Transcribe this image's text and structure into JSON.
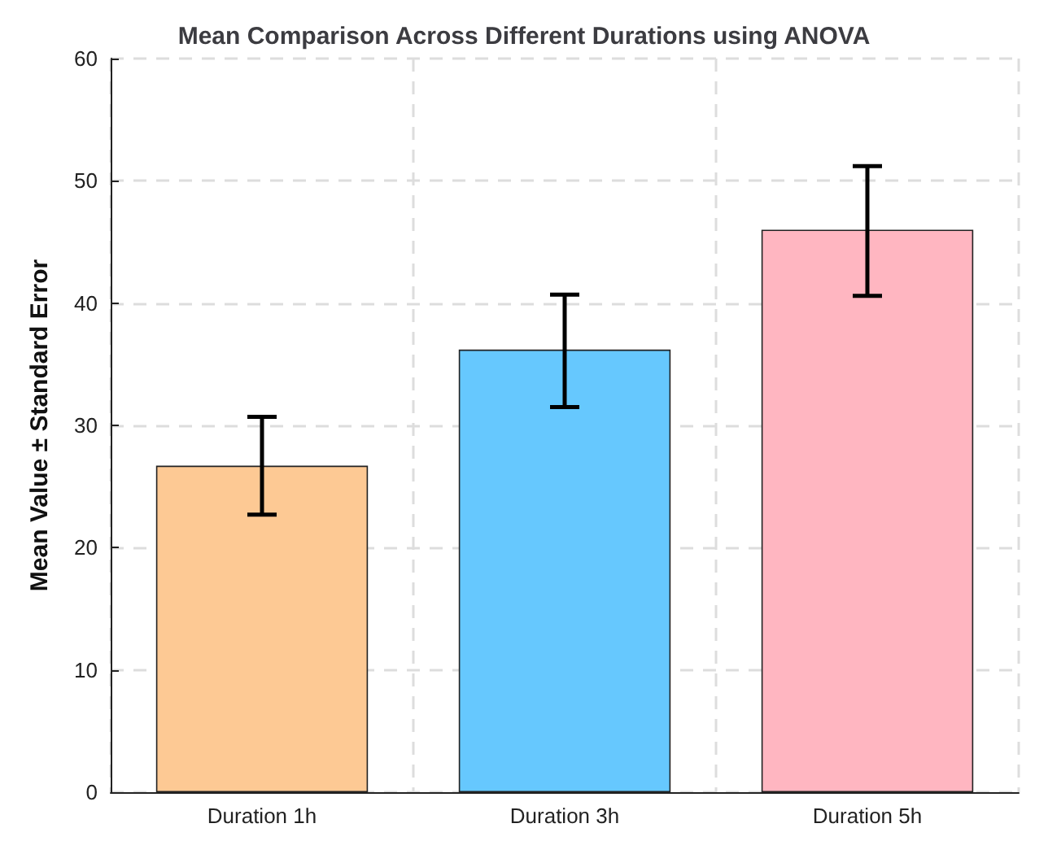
{
  "chart_data": {
    "type": "bar",
    "title": "Mean Comparison Across Different Durations using ANOVA",
    "ylabel": "Mean Value ± Standard Error",
    "categories": [
      "Duration 1h",
      "Duration 3h",
      "Duration 5h"
    ],
    "values": [
      26.7,
      36.2,
      46.0
    ],
    "colors": [
      "#fdc994",
      "#66c8fe",
      "#ffb6c1"
    ],
    "errors": [
      [
        22.7,
        30.7
      ],
      [
        31.5,
        40.7
      ],
      [
        40.6,
        51.2
      ]
    ],
    "ylim": [
      0,
      60
    ],
    "yticks": [
      0,
      10,
      20,
      30,
      40,
      50,
      60
    ],
    "grid": true
  }
}
